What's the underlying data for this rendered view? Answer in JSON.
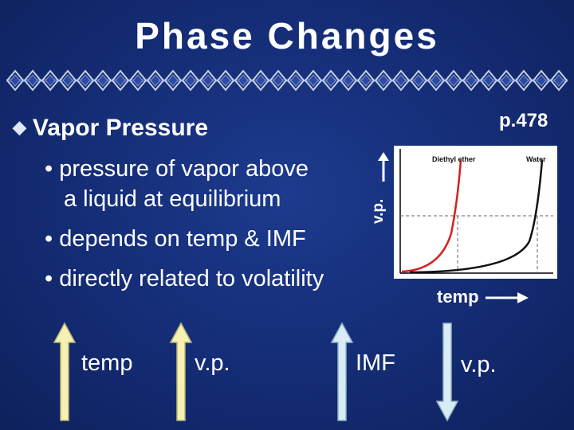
{
  "slide": {
    "title": "Phase Changes",
    "page_ref": "p.478",
    "heading": "Vapor Pressure",
    "sub_bullets": [
      "• pressure of vapor above",
      "a liquid at equilibrium",
      "• depends on temp & IMF",
      "• directly related to volatility"
    ]
  },
  "graph": {
    "y_axis_label": "v.p.",
    "x_axis_label": "temp",
    "curve_labels": [
      "Diethyl ether",
      "Water"
    ],
    "curve_colors": {
      "diethyl_ether": "#d42020",
      "water": "#111111"
    }
  },
  "relationships": [
    {
      "label": "temp",
      "direction": "up",
      "color": "#f5f1b0"
    },
    {
      "label": "v.p.",
      "direction": "up",
      "color": "#f5f1b0"
    },
    {
      "label": "IMF",
      "direction": "up",
      "color": "#d8ecf5"
    },
    {
      "label": "v.p.",
      "direction": "down",
      "color": "#d8ecf5"
    }
  ],
  "icons": {
    "bullet": "diamond-bullet-icon"
  }
}
